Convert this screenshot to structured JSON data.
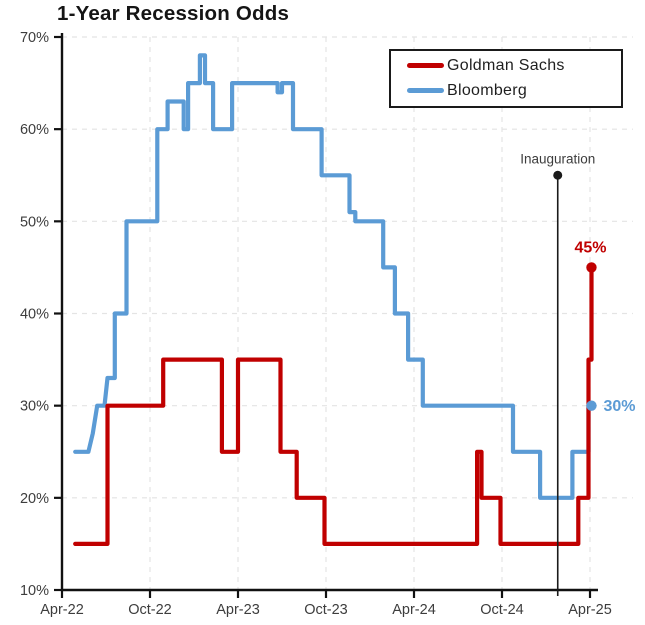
{
  "title": "1-Year Recession Odds",
  "legend": {
    "items": [
      {
        "label": "Goldman Sachs",
        "color": "#c00000"
      },
      {
        "label": "Bloomberg",
        "color": "#5b9bd5"
      }
    ]
  },
  "annotation": {
    "label": "Inauguration",
    "x_month": 33.8,
    "top_pct": 55,
    "line_color": "#1a1a1a",
    "text_color": "#3d3d3d"
  },
  "chart_data": {
    "type": "line",
    "step": true,
    "title": "1-Year Recession Odds",
    "x_axis": {
      "unit": "months since Apr-2022",
      "tick_months": [
        0,
        6,
        12,
        18,
        24,
        30,
        36
      ],
      "tick_labels": [
        "Apr-22",
        "Oct-22",
        "Apr-23",
        "Oct-23",
        "Apr-24",
        "Oct-24",
        "Apr-25"
      ],
      "range_months": [
        0,
        36.6
      ]
    },
    "y_axis": {
      "min": 10,
      "max": 70,
      "tick_step": 10,
      "tick_suffix": "%",
      "grid": "dashed"
    },
    "series": [
      {
        "name": "Goldman Sachs",
        "color": "#c00000",
        "end_label": "45%",
        "end_label_pos": "above",
        "points": [
          [
            0.9,
            15
          ],
          [
            3.1,
            15
          ],
          [
            3.1,
            30
          ],
          [
            6.9,
            30
          ],
          [
            6.9,
            35
          ],
          [
            10.9,
            35
          ],
          [
            10.9,
            25
          ],
          [
            12.0,
            25
          ],
          [
            12.0,
            35
          ],
          [
            14.9,
            35
          ],
          [
            14.9,
            25
          ],
          [
            16.0,
            25
          ],
          [
            16.0,
            20
          ],
          [
            17.9,
            20
          ],
          [
            17.9,
            15
          ],
          [
            28.3,
            15
          ],
          [
            28.3,
            25
          ],
          [
            28.6,
            25
          ],
          [
            28.6,
            20
          ],
          [
            29.9,
            20
          ],
          [
            29.9,
            15
          ],
          [
            35.2,
            15
          ],
          [
            35.2,
            20
          ],
          [
            35.9,
            20
          ],
          [
            35.9,
            35
          ],
          [
            36.1,
            35
          ],
          [
            36.1,
            45
          ]
        ]
      },
      {
        "name": "Bloomberg",
        "color": "#5b9bd5",
        "end_label": "30%",
        "end_label_pos": "right",
        "points": [
          [
            0.9,
            25
          ],
          [
            1.8,
            25
          ],
          [
            2.1,
            27
          ],
          [
            2.4,
            30
          ],
          [
            2.9,
            30
          ],
          [
            3.1,
            33
          ],
          [
            3.6,
            33
          ],
          [
            3.6,
            40
          ],
          [
            4.4,
            40
          ],
          [
            4.4,
            50
          ],
          [
            6.5,
            50
          ],
          [
            6.5,
            60
          ],
          [
            7.2,
            60
          ],
          [
            7.2,
            63
          ],
          [
            8.3,
            63
          ],
          [
            8.3,
            60
          ],
          [
            8.6,
            60
          ],
          [
            8.6,
            65
          ],
          [
            9.4,
            65
          ],
          [
            9.4,
            68
          ],
          [
            9.75,
            68
          ],
          [
            9.75,
            65
          ],
          [
            10.3,
            65
          ],
          [
            10.3,
            60
          ],
          [
            11.6,
            60
          ],
          [
            11.6,
            65
          ],
          [
            14.7,
            65
          ],
          [
            14.7,
            64
          ],
          [
            15.0,
            64
          ],
          [
            15.0,
            65
          ],
          [
            15.75,
            65
          ],
          [
            15.75,
            60
          ],
          [
            17.7,
            60
          ],
          [
            17.7,
            55
          ],
          [
            19.6,
            55
          ],
          [
            19.6,
            51
          ],
          [
            20.0,
            51
          ],
          [
            20.0,
            50
          ],
          [
            21.9,
            50
          ],
          [
            21.9,
            45
          ],
          [
            22.7,
            45
          ],
          [
            22.7,
            40
          ],
          [
            23.6,
            40
          ],
          [
            23.6,
            35
          ],
          [
            24.6,
            35
          ],
          [
            24.6,
            30
          ],
          [
            30.75,
            30
          ],
          [
            30.75,
            25
          ],
          [
            32.6,
            25
          ],
          [
            32.6,
            20
          ],
          [
            34.8,
            20
          ],
          [
            34.8,
            25
          ],
          [
            35.9,
            25
          ],
          [
            35.9,
            30
          ],
          [
            36.1,
            30
          ]
        ]
      }
    ]
  }
}
